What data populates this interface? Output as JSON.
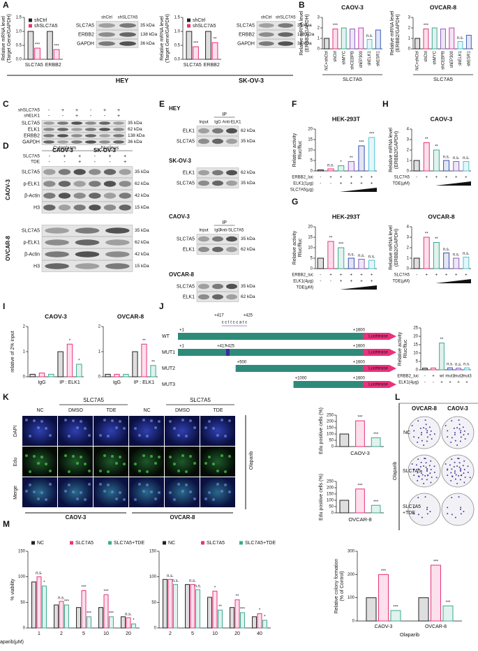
{
  "panel_labels": [
    "A",
    "B",
    "C",
    "D",
    "E",
    "F",
    "G",
    "H",
    "I",
    "J",
    "K",
    "L",
    "M"
  ],
  "captions": [
    "HEY",
    "SK-OV-3"
  ],
  "charts": [
    {
      "type": "bar",
      "ylabel": [
        "Relative mRNA level",
        "(Target Gene/GAPDH)"
      ],
      "categories": [
        "SLC7A5",
        "ERBB2"
      ],
      "series": [
        {
          "name": "shCtrl",
          "color": "#222222",
          "values": [
            1,
            1
          ]
        },
        {
          "name": "shSLC7A5",
          "color": "#e8327c",
          "values": [
            0.4,
            0.35
          ],
          "sig": [
            "***",
            "***"
          ]
        }
      ],
      "ylim": [
        0,
        1.5
      ],
      "yticks": [
        {
          "value": 0,
          "label": "0.0"
        },
        {
          "value": 0.5,
          "label": "0.5"
        },
        {
          "value": 1,
          "label": "1.0"
        },
        {
          "value": 1.5,
          "label": "1.5"
        }
      ],
      "legend": "top-left"
    },
    {
      "type": "bar",
      "ylabel": [
        "Relative mRNA level",
        "(Target Gene/GAPDH)"
      ],
      "categories": [
        "SLC7A5",
        "ERBB2"
      ],
      "series": [
        {
          "name": "shCtrl",
          "color": "#222222",
          "values": [
            1,
            1
          ]
        },
        {
          "name": "shSLC7A5",
          "color": "#e8327c",
          "values": [
            0.45,
            0.6
          ],
          "sig": [
            "***",
            "**"
          ]
        }
      ],
      "ylim": [
        0,
        1.5
      ],
      "yticks": [
        {
          "value": 0,
          "label": "0.0"
        },
        {
          "value": 0.5,
          "label": "0.5"
        },
        {
          "value": 1,
          "label": "1.0"
        },
        {
          "value": 1.5,
          "label": "1.5"
        }
      ],
      "legend": "top-left"
    },
    {
      "type": "bar",
      "title": "CAOV-3",
      "ylabel": [
        "Relative mRNA level",
        "(ERBB2/GAPDH)"
      ],
      "categories": [
        "NC+shCtrl",
        "shCtrl",
        "shMYC",
        "shCEBPB",
        "shEP300",
        "shELK1",
        "shESR1"
      ],
      "series": [
        {
          "values": [
            1,
            1.9,
            2.0,
            1.9,
            2.0,
            0.9,
            1.8
          ],
          "colors": [
            "#222222",
            "#e8327c",
            "#3aaa8f",
            "#8a5cc0",
            "#c040b0",
            "#4ec2d4",
            "#3b5fc0"
          ],
          "sig": [
            null,
            "***",
            null,
            null,
            null,
            "n.s.",
            null
          ]
        }
      ],
      "ylim": [
        0,
        3
      ],
      "yticks": [
        0,
        1,
        2,
        3
      ],
      "rotate_labels": true,
      "xlabel": "SLC7A5"
    },
    {
      "type": "bar",
      "title": "OVCAR-8",
      "ylabel": [
        "Relative mRNA level",
        "(ERBB2/GAPDH)"
      ],
      "categories": [
        "NC+shCtrl",
        "shCtrl",
        "shMYC",
        "shCEBPB",
        "shEP300",
        "shELK1",
        "shESR1"
      ],
      "series": [
        {
          "values": [
            1,
            1.9,
            2.0,
            1.9,
            2.0,
            0.7,
            1.3
          ],
          "colors": [
            "#222222",
            "#e8327c",
            "#3aaa8f",
            "#8a5cc0",
            "#c040b0",
            "#4ec2d4",
            "#3b5fc0"
          ],
          "sig": [
            null,
            "***",
            null,
            null,
            null,
            "n.s.",
            null
          ]
        }
      ],
      "ylim": [
        0,
        3
      ],
      "yticks": [
        0,
        1,
        2,
        3
      ],
      "rotate_labels": true,
      "xlabel": "SLC7A5"
    },
    {
      "type": "bar",
      "title": "HEK-293T",
      "ylabel": [
        "Relative activity",
        "Rluc/fluc"
      ],
      "series": [
        {
          "values": [
            0.5,
            1,
            2.5,
            4.5,
            12,
            16
          ],
          "colors": [
            "#222222",
            "#e8327c",
            "#3aaa8f",
            "#8a5cc0",
            "#3b4fb0",
            "#4ec2d4"
          ],
          "sig": [
            null,
            "n.s.",
            "*",
            "**",
            "***",
            "***"
          ]
        }
      ],
      "ylim": [
        0,
        20
      ],
      "yticks": [
        0,
        5,
        10,
        15,
        20
      ],
      "rows": [
        {
          "name": "ERBB2_luc",
          "signs": [
            "-",
            "+",
            "+",
            "+",
            "+",
            "+"
          ]
        },
        {
          "name": "ELK1(1μg)",
          "signs": [
            "-",
            "-",
            "+",
            "+",
            "+",
            "+"
          ]
        },
        {
          "name": "SLC7A5(μg)",
          "signs": [],
          "ramp": true
        }
      ]
    },
    {
      "type": "bar",
      "title": "HEK-293T",
      "ylabel": [
        "Relative activity",
        "Rluc/fluc"
      ],
      "series": [
        {
          "values": [
            5,
            13,
            10,
            5,
            4.5,
            4
          ],
          "colors": [
            "#222222",
            "#e8327c",
            "#3aaa8f",
            "#3b4fb0",
            "#8a5cc0",
            "#4ec2d4"
          ],
          "sig": [
            null,
            "**",
            "***",
            "n.s.",
            "n.s.",
            "n.s."
          ]
        }
      ],
      "ylim": [
        0,
        20
      ],
      "yticks": [
        0,
        5,
        10,
        15,
        20
      ],
      "rows": [
        {
          "name": "ERBB2_luc",
          "signs": [
            "-",
            "+",
            "+",
            "+",
            "+",
            "+"
          ]
        },
        {
          "name": "ELK1(4μg)",
          "signs": [
            "-",
            "-",
            "+",
            "+",
            "+",
            "+"
          ]
        },
        {
          "name": "TDE(μM)",
          "signs": [],
          "ramp": true
        }
      ]
    },
    {
      "type": "bar",
      "title": "CAOV-3",
      "ylabel": [
        "Relative mRNA level",
        "(ERBB2/GAPDH)"
      ],
      "series": [
        {
          "values": [
            1,
            2.7,
            2.0,
            1.0,
            0.9,
            0.9
          ],
          "colors": [
            "#222222",
            "#e8327c",
            "#3aaa8f",
            "#3b4fb0",
            "#8a5cc0",
            "#4ec2d4"
          ],
          "sig": [
            null,
            "**",
            "**",
            "n.s.",
            "n.s.",
            "n.s."
          ]
        }
      ],
      "ylim": [
        0,
        4
      ],
      "yticks": [
        0,
        1,
        2,
        3,
        4
      ],
      "rows": [
        {
          "name": "SLC7A5",
          "signs": [
            "-",
            "+",
            "+",
            "+",
            "+",
            "+"
          ]
        },
        {
          "name": "TDE(μM)",
          "signs": [],
          "ramp": true
        }
      ]
    },
    {
      "type": "bar",
      "title": "OVCAR-8",
      "ylabel": [
        "Relative mRNA level",
        "(ERBB2/GAPDH)"
      ],
      "series": [
        {
          "values": [
            1,
            3,
            2.5,
            1.5,
            1.0,
            1.1
          ],
          "colors": [
            "#222222",
            "#e8327c",
            "#3aaa8f",
            "#3b4fb0",
            "#8a5cc0",
            "#4ec2d4"
          ],
          "sig": [
            null,
            "**",
            "**",
            "n.s.",
            "n.s.",
            "n.s."
          ]
        }
      ],
      "ylim": [
        0,
        4
      ],
      "yticks": [
        0,
        1,
        2,
        3,
        4
      ],
      "rows": [
        {
          "name": "SLC7A5",
          "signs": [
            "-",
            "+",
            "+",
            "+",
            "+",
            "+"
          ]
        },
        {
          "name": "TDE(μM)",
          "signs": [],
          "ramp": true
        }
      ]
    },
    {
      "type": "bar",
      "title": "CAOV-3",
      "ylabel": [
        "relative of 2% input"
      ],
      "categories": [
        null,
        "IgG",
        null,
        null,
        "IP : ELK1",
        null
      ],
      "series": [
        {
          "values": [
            0.1,
            0.15,
            0.1,
            1.0,
            1.3,
            0.5
          ],
          "colors": [
            "#222222",
            "#e8327c",
            "#3aaa8f",
            "#222222",
            "#e8327c",
            "#3aaa8f"
          ],
          "sig": [
            null,
            null,
            null,
            null,
            "*",
            "*"
          ]
        }
      ],
      "ylim": [
        0,
        2
      ],
      "yticks": [
        0,
        1,
        2
      ]
    },
    {
      "type": "bar",
      "title": "OVCAR-8",
      "categories": [
        null,
        "IgG",
        null,
        null,
        "IP : ELK1",
        null
      ],
      "series": [
        {
          "values": [
            0.1,
            0.1,
            0.1,
            1.0,
            1.3,
            0.45
          ],
          "colors": [
            "#222222",
            "#e8327c",
            "#3aaa8f",
            "#222222",
            "#e8327c",
            "#3aaa8f"
          ],
          "sig": [
            null,
            null,
            null,
            null,
            "**",
            "**"
          ]
        }
      ],
      "ylim": [
        0,
        2
      ],
      "yticks": [
        0,
        1,
        2
      ]
    },
    {
      "type": "bar",
      "ylabel": [
        "Relative activity",
        "Rluc/fluc"
      ],
      "series": [
        {
          "values": [
            1,
            1.1,
            16,
            1.2,
            1,
            1.2
          ],
          "colors": [
            "#222222",
            "#e8327c",
            "#3aaa8f",
            "#3b4fb0",
            "#8a5cc0",
            "#4ec2d4"
          ],
          "sig": [
            null,
            null,
            "**",
            "n.s.",
            "n.s.",
            "n.s."
          ]
        }
      ],
      "ylim": [
        0,
        25
      ],
      "yticks": [
        0,
        5,
        10,
        15,
        20,
        25
      ],
      "rows": [
        {
          "name": "ERBB2_luc",
          "signs": [
            "-",
            "+",
            "wt",
            "mut1",
            "mut2",
            "mut3"
          ]
        },
        {
          "name": "ELK1(4μg)",
          "signs": [
            "-",
            "-",
            "+",
            "+",
            "+",
            "+"
          ]
        }
      ]
    },
    {
      "type": "bar",
      "ylabel": [
        "Edu positive cells (%)"
      ],
      "xlabel": "CAOV-3",
      "series": [
        {
          "values": [
            100,
            205,
            70
          ],
          "colors": [
            "#222222",
            "#e8327c",
            "#3aaa8f"
          ],
          "sig": [
            null,
            "***",
            "***"
          ]
        }
      ],
      "ylim": [
        0,
        250
      ],
      "yticks": [
        0,
        50,
        100,
        150,
        200,
        250
      ]
    },
    {
      "type": "bar",
      "ylabel": [
        "Edu positive cells (%)"
      ],
      "xlabel": "OVCAR-8",
      "series": [
        {
          "values": [
            100,
            190,
            60
          ],
          "colors": [
            "#222222",
            "#e8327c",
            "#3aaa8f"
          ],
          "sig": [
            null,
            "***",
            "***"
          ]
        }
      ],
      "ylim": [
        0,
        250
      ],
      "yticks": [
        0,
        50,
        100,
        150,
        200,
        250
      ]
    },
    {
      "type": "bar",
      "ylabel": [
        "% viability"
      ],
      "categories": [
        "1",
        "2",
        "5",
        "10",
        "20"
      ],
      "xlabel": "Olaparib(μM)",
      "xlabel_pos": "left",
      "legend": "top",
      "series": [
        {
          "name": "NC",
          "color": "#222222",
          "values": [
            90,
            45,
            40,
            40,
            22
          ]
        },
        {
          "name": "SLC7A5",
          "color": "#e8327c",
          "values": [
            100,
            52,
            73,
            65,
            20
          ],
          "sig": [
            "n.s.",
            "n.s.",
            "***",
            "***",
            "n.s."
          ]
        },
        {
          "name": "SLC7A5+TDE",
          "color": "#3aaa8f",
          "values": [
            82,
            45,
            22,
            22,
            8
          ],
          "sig": [
            "*",
            "***",
            "***",
            "***",
            "*"
          ]
        }
      ],
      "ylim": [
        0,
        150
      ],
      "yticks": [
        0,
        50,
        100,
        150
      ]
    },
    {
      "type": "bar",
      "categories": [
        "2",
        "5",
        "10",
        "20",
        "40"
      ],
      "legend": "top",
      "series": [
        {
          "name": "NC",
          "color": "#222222",
          "values": [
            95,
            85,
            60,
            40,
            22
          ]
        },
        {
          "name": "SLC7A5",
          "color": "#e8327c",
          "values": [
            95,
            85,
            72,
            55,
            28
          ],
          "sig": [
            "n.s.",
            "n.s.",
            "*",
            "**",
            "*"
          ]
        },
        {
          "name": "SLC7A5+TDE",
          "color": "#3aaa8f",
          "values": [
            85,
            75,
            35,
            30,
            15
          ],
          "sig": [
            "n.s.",
            "n.s.",
            "**",
            "***",
            "*"
          ]
        }
      ],
      "ylim": [
        0,
        150
      ],
      "yticks": [
        0,
        50,
        100,
        150
      ]
    },
    {
      "type": "bar",
      "ylabel": [
        "Relative colony formation",
        "(% of Control)"
      ],
      "categories": [
        "CAOV-3",
        "OVCAR-8"
      ],
      "xlabel": "Olaparib",
      "series": [
        {
          "name": "NC",
          "color": "#222222",
          "values": [
            100,
            100
          ]
        },
        {
          "name": "SLC7A5",
          "color": "#e8327c",
          "values": [
            200,
            240
          ],
          "sig": [
            "***",
            "***"
          ]
        },
        {
          "name": "SLC7A5+TDE",
          "color": "#3aaa8f",
          "values": [
            45,
            65
          ],
          "sig": [
            "***",
            "***"
          ]
        }
      ],
      "ylim": [
        0,
        300
      ],
      "yticks": [
        0,
        100,
        200,
        300
      ]
    }
  ],
  "blots": [
    {
      "lanes": [
        "shCtrl",
        "shSLC7A5"
      ],
      "bands": [
        "SLC7A5",
        "ERBB2",
        "GAPDH"
      ],
      "kda": [
        "35 kDa",
        "138 kDa",
        "36 kDa"
      ]
    },
    {
      "lanes": [
        "shCtrl",
        "shSLC7A5"
      ],
      "bands": [
        "SLC7A5",
        "ERBB2",
        "GAPDH"
      ],
      "kda": [
        "35 kDa",
        "138 kDa",
        "36 kDa"
      ]
    },
    {
      "rows": [
        {
          "name": "shSLC7A5",
          "signs": [
            "-",
            "+",
            "+",
            "-",
            "+",
            "+"
          ]
        },
        {
          "name": "shELK1",
          "signs": [
            "-",
            "-",
            "+",
            "-",
            "-",
            "+"
          ]
        }
      ],
      "bands": [
        "SLC7A5",
        "ELK1",
        "ERBB2",
        "GAPDH"
      ],
      "kda": [
        "35 kDa",
        "62 kDa",
        "138 kDa",
        "36 kDa"
      ],
      "groups": [
        "CAOV-3",
        "SK-OV-3"
      ]
    },
    {
      "header": [
        "Cytoplasm",
        "Nucleus"
      ],
      "rows": [
        {
          "name": "SLC7A5",
          "signs": [
            "-",
            "+",
            "+",
            "-",
            "+",
            "+"
          ]
        },
        {
          "name": "TDE",
          "signs": [
            "-",
            "-",
            "+",
            "-",
            "-",
            "+"
          ]
        }
      ],
      "side": "CAOV-3",
      "bands": [
        "SLC7A5",
        "p-ELK1",
        "β-Actin",
        "H3"
      ],
      "kda": [
        "35 kDa",
        "62 kDa",
        "42  kDa",
        "15 kDa"
      ]
    },
    {
      "side": "OVCAR-8",
      "bands": [
        "SLC7A5",
        "p-ELK1",
        "β-Actin",
        "H3"
      ],
      "kda": [
        "35 kDa",
        "62 kDa",
        "42  kDa",
        "15 kDa"
      ]
    },
    {
      "title": "HEY",
      "header": [
        "IP"
      ],
      "lanes": [
        "Input",
        "IgG",
        "Anti-ELK1"
      ],
      "bands": [
        "ELK1",
        "SLC7A5"
      ],
      "kda": [
        "62 kDa",
        "35 kDa"
      ]
    },
    {
      "title": "SK-OV-3",
      "bands": [
        "ELK1",
        "SLC7A5"
      ],
      "kda": [
        "62 kDa",
        "35 kDa"
      ]
    },
    {
      "title": "CAOV-3",
      "header": [
        "IP"
      ],
      "lanes": [
        "Input",
        "IgG",
        "Anti-SLC7A5"
      ],
      "bands": [
        "SLC7A5",
        "ELK1"
      ],
      "kda": [
        "35 kDa",
        "62 kDa"
      ]
    },
    {
      "title": "OVCAR-8",
      "bands": [
        "SLC7A5",
        "ELK1"
      ],
      "kda": [
        "35 kDa",
        "62 kDa"
      ]
    }
  ],
  "j_diagram": {
    "constructs": [
      "WT",
      "MUT1",
      "MUT2",
      "MUT3"
    ],
    "starts": [
      "+1",
      "+1",
      "+500",
      "+1000"
    ],
    "end": "+1600",
    "reporter": "Luciferase",
    "site": [
      "+417",
      "+425"
    ],
    "seq": "c c t t c c a t c"
  },
  "k_panel": {
    "conditions": [
      "NC",
      "DMSO",
      "TDE"
    ],
    "group": "SLC7A5",
    "stains": [
      "DAPI",
      "Edu",
      "Merge"
    ],
    "lines": [
      "CAOV-3",
      "OVCAR-8"
    ],
    "drug": "Olaparib"
  },
  "l_panel": {
    "lines": [
      "OVCAR-8",
      "CAOV-3"
    ],
    "conditions": [
      "NC",
      "SLC7A5"
    ],
    "combo": [
      "SLC7A5",
      "+TDE"
    ],
    "drug": "Olaparib"
  }
}
